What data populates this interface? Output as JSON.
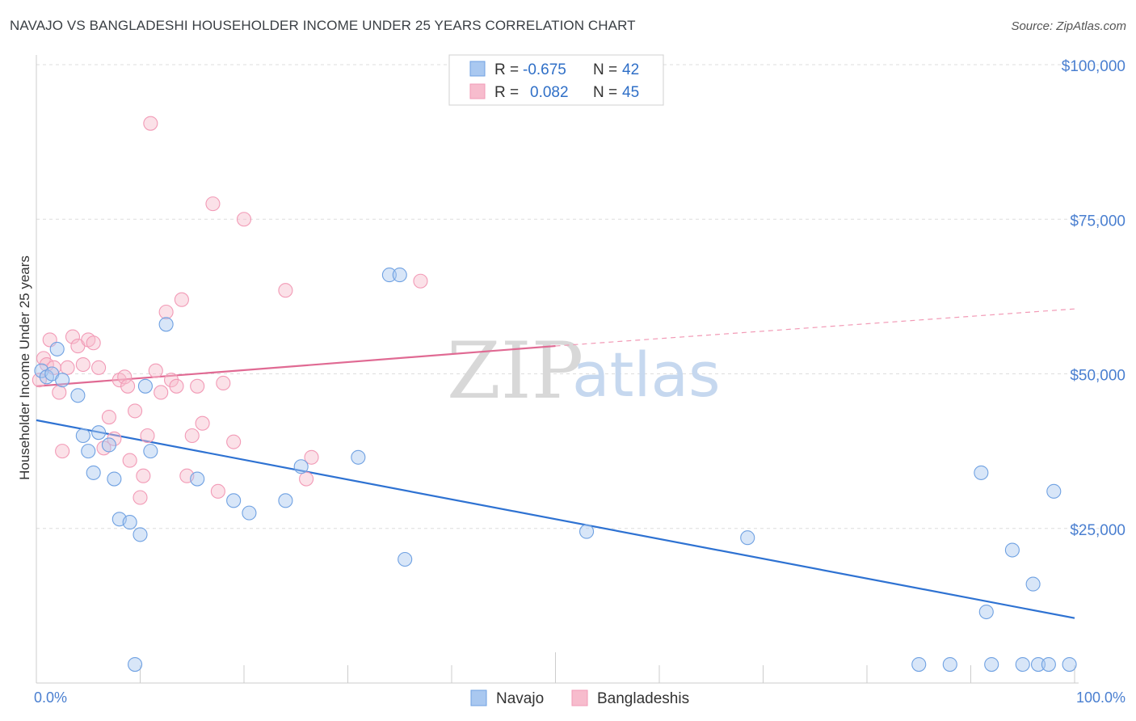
{
  "header": {
    "title": "NAVAJO VS BANGLADESHI HOUSEHOLDER INCOME UNDER 25 YEARS CORRELATION CHART",
    "source": "Source: ZipAtlas.com"
  },
  "watermark": {
    "zip": "ZIP",
    "atlas": "atlas"
  },
  "legend": {
    "rows": [
      {
        "r_label": "R =",
        "r_value": "-0.675",
        "n_label": "N =",
        "n_value": "42",
        "color": "#a9c8f0"
      },
      {
        "r_label": "R =",
        "r_value": "0.082",
        "n_label": "N =",
        "n_value": "45",
        "color": "#f7bccd"
      }
    ]
  },
  "bottom_legend": [
    "Navajo",
    "Bangladeshis"
  ],
  "chart_data": {
    "type": "scatter",
    "ylabel": "Householder Income Under 25 years",
    "xlim": [
      0,
      100
    ],
    "ylim": [
      0,
      105000
    ],
    "x_tick_labels": [
      "0.0%",
      "100.0%"
    ],
    "y_ticks": [
      25000,
      50000,
      75000,
      100000
    ],
    "y_tick_labels": [
      "$25,000",
      "$50,000",
      "$75,000",
      "$100,000"
    ],
    "grid": true,
    "colors": {
      "navajo": "#6fa1e2",
      "navajo_line": "#2e72d2",
      "bangladeshi": "#f29ab6",
      "bangladeshi_line": "#e06a93"
    },
    "series": [
      {
        "name": "Navajo",
        "points": [
          [
            0.5,
            50500
          ],
          [
            1,
            49500
          ],
          [
            1.5,
            50000
          ],
          [
            2,
            54000
          ],
          [
            2.5,
            49000
          ],
          [
            4,
            46500
          ],
          [
            4.5,
            40000
          ],
          [
            5,
            37500
          ],
          [
            5.5,
            34000
          ],
          [
            6,
            40500
          ],
          [
            7,
            38500
          ],
          [
            7.5,
            33000
          ],
          [
            8,
            26500
          ],
          [
            9,
            26000
          ],
          [
            9.5,
            3000
          ],
          [
            10,
            24000
          ],
          [
            10.5,
            48000
          ],
          [
            11,
            37500
          ],
          [
            12.5,
            58000
          ],
          [
            15.5,
            33000
          ],
          [
            19,
            29500
          ],
          [
            20.5,
            27500
          ],
          [
            24,
            29500
          ],
          [
            25.5,
            35000
          ],
          [
            31,
            36500
          ],
          [
            34,
            66000
          ],
          [
            35,
            66000
          ],
          [
            35.5,
            20000
          ],
          [
            53,
            24500
          ],
          [
            68.5,
            23500
          ],
          [
            85,
            3000
          ],
          [
            88,
            3000
          ],
          [
            91,
            34000
          ],
          [
            91.5,
            11500
          ],
          [
            92,
            3000
          ],
          [
            94,
            21500
          ],
          [
            95,
            3000
          ],
          [
            96,
            16000
          ],
          [
            96.5,
            3000
          ],
          [
            97.5,
            3000
          ],
          [
            98,
            31000
          ],
          [
            99.5,
            3000
          ]
        ],
        "trend": [
          [
            0,
            42500
          ],
          [
            100,
            10500
          ]
        ]
      },
      {
        "name": "Bangladeshis",
        "points": [
          [
            0.3,
            49000
          ],
          [
            0.7,
            52500
          ],
          [
            1,
            51500
          ],
          [
            1.3,
            55500
          ],
          [
            1.7,
            51000
          ],
          [
            2.2,
            47000
          ],
          [
            2.5,
            37500
          ],
          [
            3,
            51000
          ],
          [
            3.5,
            56000
          ],
          [
            4,
            54500
          ],
          [
            4.5,
            51500
          ],
          [
            5,
            55500
          ],
          [
            5.5,
            55000
          ],
          [
            6,
            51000
          ],
          [
            6.5,
            38000
          ],
          [
            7,
            43000
          ],
          [
            7.5,
            39500
          ],
          [
            8,
            49000
          ],
          [
            8.5,
            49500
          ],
          [
            9,
            36000
          ],
          [
            9.5,
            44000
          ],
          [
            10,
            30000
          ],
          [
            10.3,
            33500
          ],
          [
            10.7,
            40000
          ],
          [
            11,
            90500
          ],
          [
            11.5,
            50500
          ],
          [
            12,
            47000
          ],
          [
            12.5,
            60000
          ],
          [
            13,
            49000
          ],
          [
            13.5,
            48000
          ],
          [
            14,
            62000
          ],
          [
            14.5,
            33500
          ],
          [
            15,
            40000
          ],
          [
            15.5,
            48000
          ],
          [
            16,
            42000
          ],
          [
            17,
            77500
          ],
          [
            17.5,
            31000
          ],
          [
            18,
            48500
          ],
          [
            19,
            39000
          ],
          [
            20,
            75000
          ],
          [
            24,
            63500
          ],
          [
            26,
            33000
          ],
          [
            26.5,
            36500
          ],
          [
            37,
            65000
          ],
          [
            8.8,
            48000
          ]
        ],
        "trend_solid": [
          [
            0,
            48000
          ],
          [
            50,
            54500
          ]
        ],
        "trend_dashed": [
          [
            50,
            54500
          ],
          [
            100,
            60500
          ]
        ]
      }
    ]
  }
}
